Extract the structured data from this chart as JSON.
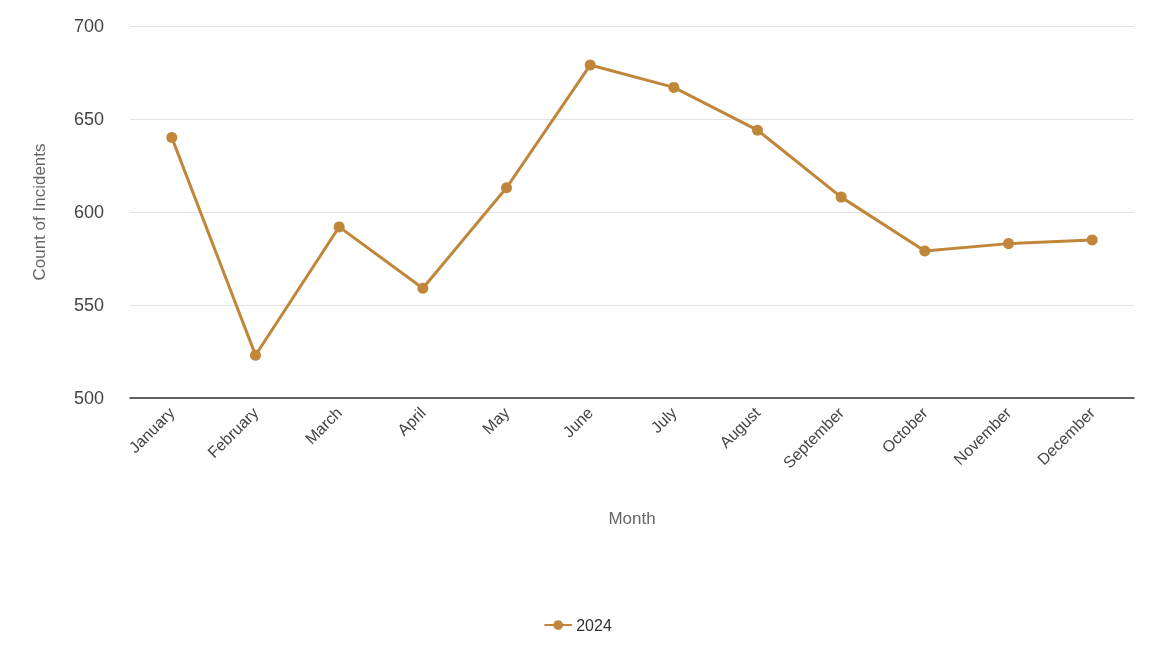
{
  "chart_data": {
    "type": "line",
    "xlabel": "Month",
    "ylabel": "Count of Incidents",
    "categories": [
      "January",
      "February",
      "March",
      "April",
      "May",
      "June",
      "July",
      "August",
      "September",
      "October",
      "November",
      "December"
    ],
    "series": [
      {
        "name": "2024",
        "color": "#c0873a",
        "values": [
          640,
          523,
          592,
          559,
          613,
          679,
          667,
          644,
          608,
          579,
          583,
          585
        ]
      }
    ],
    "ylim": [
      500,
      700
    ],
    "yticks": [
      500,
      550,
      600,
      650,
      700
    ],
    "grid": "y",
    "legend": "bottom",
    "marker": "circle",
    "line_style": "solid"
  }
}
